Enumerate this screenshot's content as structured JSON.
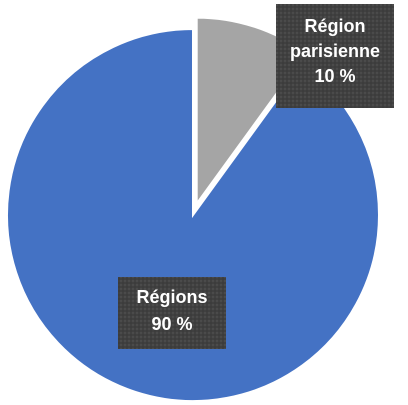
{
  "chart_data": {
    "type": "pie",
    "slices": [
      {
        "name": "Région parisienne",
        "label_lines": [
          "Région",
          "parisienne",
          "10 %"
        ],
        "value": 10,
        "color": "#a5a5a5",
        "exploded": true
      },
      {
        "name": "Régions",
        "label_lines": [
          "Régions",
          "90 %"
        ],
        "value": 90,
        "color": "#4472c4",
        "exploded": false
      }
    ],
    "label_box_color": "#404040",
    "start_angle_deg": 0,
    "direction": "clockwise"
  }
}
